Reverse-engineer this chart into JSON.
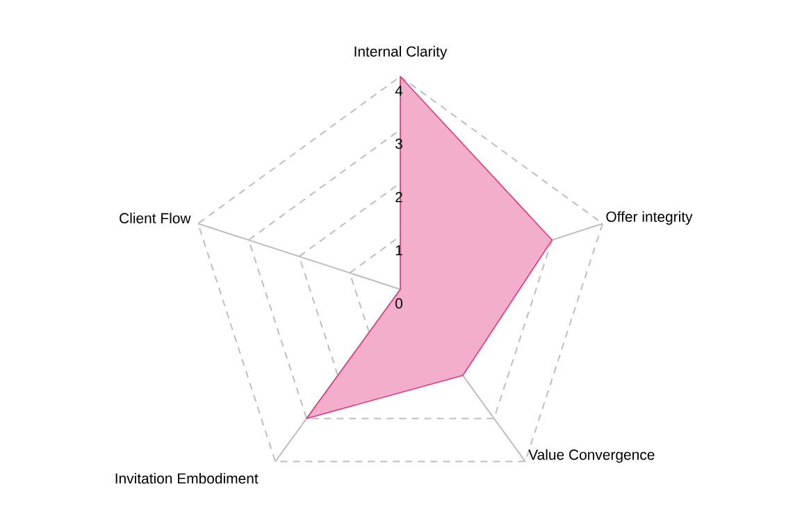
{
  "chart_data": {
    "type": "radar",
    "categories": [
      "Internal Clarity",
      "Offer integrity",
      "Value Convergence",
      "Invitation Embodiment",
      "Client Flow"
    ],
    "series": [
      {
        "color": "#e0357f",
        "values": [
          4,
          3,
          2,
          3,
          0
        ]
      }
    ],
    "ylim": [
      0,
      4
    ],
    "yticks": [
      0,
      1,
      2,
      3,
      4
    ],
    "grid": true
  }
}
